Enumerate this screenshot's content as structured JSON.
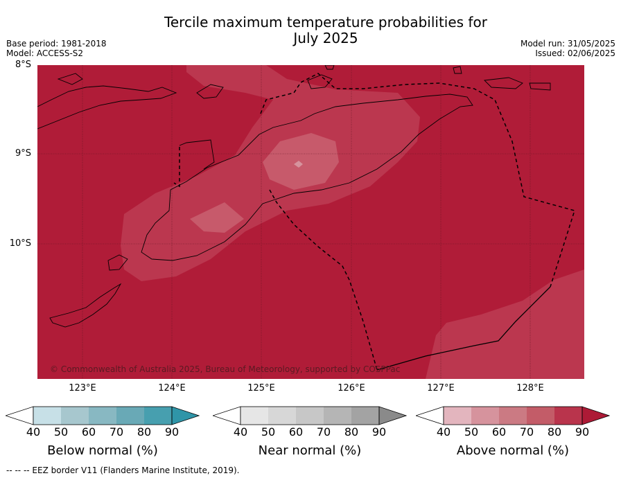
{
  "title": {
    "line1": "Tercile maximum temperature probabilities for",
    "line2": "July 2025"
  },
  "meta_left": {
    "base_period": "Base period: 1981-2018",
    "model": "Model: ACCESS-S2"
  },
  "meta_right": {
    "model_run": "Model run: 31/05/2025",
    "issued": "Issued: 02/06/2025"
  },
  "map": {
    "latitude_labels": [
      "8°S",
      "9°S",
      "10°S"
    ],
    "longitude_labels": [
      "123°E",
      "124°E",
      "125°E",
      "126°E",
      "127°E",
      "128°E"
    ],
    "copyright": "© Commonwealth of Australia 2025, Bureau of Meteorology, supported by COSPPac",
    "colors": {
      "above_90": "#b01c38",
      "above_80": "#bb374f",
      "above_70": "#c75a6b",
      "land_line": "#000000"
    }
  },
  "legends": [
    {
      "title": "Below normal (%)",
      "ticks": [
        "40",
        "50",
        "60",
        "70",
        "80",
        "90"
      ],
      "colors": [
        "#ffffff",
        "#c7e0e7",
        "#a7c7ce",
        "#88b8c2",
        "#69a9b6",
        "#479faf",
        "#2f95a8"
      ]
    },
    {
      "title": "Near normal (%)",
      "ticks": [
        "40",
        "50",
        "60",
        "70",
        "80",
        "90"
      ],
      "colors": [
        "#ffffff",
        "#e6e6e6",
        "#d7d7d7",
        "#c7c7c7",
        "#b5b5b5",
        "#a3a3a3",
        "#8a8a8a"
      ]
    },
    {
      "title": "Above normal (%)",
      "ticks": [
        "40",
        "50",
        "60",
        "70",
        "80",
        "90"
      ],
      "colors": [
        "#ffffff",
        "#e3b5be",
        "#d6939d",
        "#cb7a83",
        "#c35c68",
        "#b9344c",
        "#ad1a36"
      ]
    }
  ],
  "footnote": "--  --  -- EEZ border V11 (Flanders Marine Institute, 2019)."
}
